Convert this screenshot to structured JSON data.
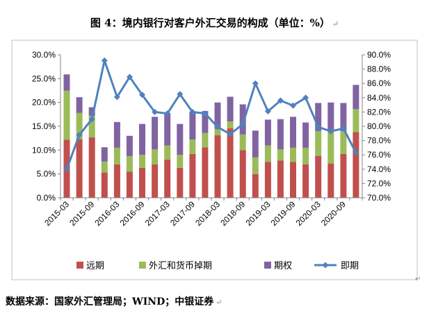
{
  "title": "图 4：境内银行对客户外汇交易的构成（单位：%）",
  "source": "数据来源：国家外汇管理局；WIND；中银证券",
  "chart_data": {
    "type": "bar",
    "stacked": true,
    "categories": [
      "2015-03",
      "2015-06",
      "2015-09",
      "2015-12",
      "2016-03",
      "2016-06",
      "2016-09",
      "2016-12",
      "2017-03",
      "2017-06",
      "2017-09",
      "2017-12",
      "2018-03",
      "2018-06",
      "2018-09",
      "2018-12",
      "2019-03",
      "2019-06",
      "2019-09",
      "2019-12",
      "2020-03",
      "2020-06",
      "2020-09",
      "2020-12"
    ],
    "x_tick_labels": [
      "2015-03",
      "2015-09",
      "2016-03",
      "2016-09",
      "2017-03",
      "2017-09",
      "2018-03",
      "2018-09",
      "2019-03",
      "2019-09",
      "2020-03",
      "2020-09"
    ],
    "series": [
      {
        "name": "远期",
        "axis": "left",
        "color": "#C0504D",
        "values": [
          12.2,
          12.3,
          12.7,
          5.3,
          7.0,
          5.5,
          6.3,
          7.0,
          8.0,
          6.3,
          9.2,
          10.6,
          13.1,
          14.6,
          10.0,
          5.0,
          7.5,
          7.8,
          7.5,
          7.0,
          8.8,
          7.2,
          9.2,
          13.8
        ]
      },
      {
        "name": "外汇和货币掉期",
        "axis": "left",
        "color": "#9BBB59",
        "values": [
          10.3,
          5.5,
          4.5,
          2.3,
          3.5,
          3.2,
          2.7,
          3.2,
          3.0,
          2.7,
          3.0,
          3.0,
          1.4,
          1.4,
          3.3,
          3.5,
          3.5,
          2.4,
          3.0,
          3.5,
          5.2,
          6.8,
          4.8,
          4.8
        ]
      },
      {
        "name": "期权",
        "axis": "left",
        "color": "#8064A2",
        "values": [
          3.4,
          3.3,
          1.8,
          3.0,
          5.4,
          4.3,
          6.5,
          6.8,
          6.8,
          6.5,
          5.8,
          4.6,
          5.5,
          5.2,
          6.3,
          5.6,
          5.4,
          6.3,
          6.5,
          5.3,
          5.9,
          6.0,
          5.9,
          5.1
        ]
      },
      {
        "name": "即期",
        "axis": "right",
        "color": "#4F81BD",
        "values": [
          74.0,
          78.8,
          81.0,
          89.2,
          84.1,
          86.9,
          84.4,
          82.0,
          81.8,
          84.5,
          82.0,
          81.8,
          79.9,
          78.9,
          80.3,
          86.0,
          82.1,
          83.6,
          82.9,
          84.0,
          79.9,
          79.3,
          79.7,
          76.3
        ]
      }
    ],
    "y_left": {
      "min": 0,
      "max": 30,
      "step": 5,
      "ticks": [
        "0.0%",
        "5.0%",
        "10.0%",
        "15.0%",
        "20.0%",
        "25.0%",
        "30.0%"
      ]
    },
    "y_right": {
      "min": 70,
      "max": 90,
      "step": 2,
      "ticks": [
        "70.0%",
        "72.0%",
        "74.0%",
        "76.0%",
        "78.0%",
        "80.0%",
        "82.0%",
        "84.0%",
        "86.0%",
        "88.0%",
        "90.0%"
      ]
    },
    "legend": [
      "远期",
      "外汇和货币掉期",
      "期权",
      "即期"
    ],
    "grid": false,
    "legend_position": "bottom"
  }
}
